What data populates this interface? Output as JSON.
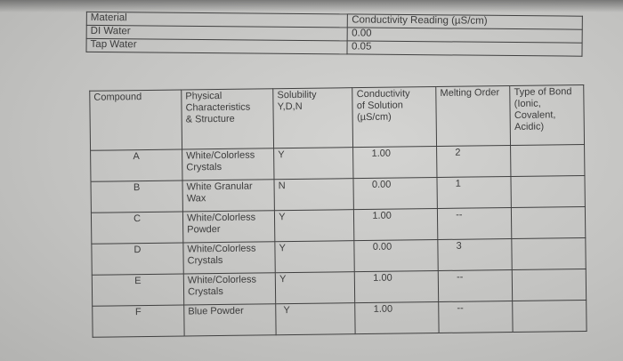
{
  "table1": {
    "header": [
      "Material",
      "Conductivity Reading (µS/cm)"
    ],
    "rows": [
      {
        "material": "DI Water",
        "reading": "0.00"
      },
      {
        "material": "Tap Water",
        "reading": "0.05"
      }
    ]
  },
  "table2": {
    "headers": {
      "compound": "Compound",
      "physical": [
        "Physical",
        "Characteristics",
        "& Structure"
      ],
      "solubility": [
        "Solubility",
        "Y,D,N"
      ],
      "conductivity": [
        "Conductivity",
        "of Solution",
        "(µS/cm)"
      ],
      "melting": "Melting Order",
      "bond": [
        "Type of Bond",
        "(Ionic,",
        "Covalent,",
        "Acidic)"
      ]
    },
    "rows": [
      {
        "compound": "A",
        "phys1": "White/Colorless",
        "phys2": "Crystals",
        "sol": "Y",
        "cond": "1.00",
        "melt": "2",
        "bond": ""
      },
      {
        "compound": "B",
        "phys1": "White Granular",
        "phys2": "Wax",
        "sol": "N",
        "cond": "0.00",
        "melt": "1",
        "bond": ""
      },
      {
        "compound": "C",
        "phys1": "White/Colorless",
        "phys2": "Powder",
        "sol": "Y",
        "cond": "1.00",
        "melt": "--",
        "bond": ""
      },
      {
        "compound": "D",
        "phys1": "White/Colorless",
        "phys2": "Crystals",
        "sol": "Y",
        "cond": "0.00",
        "melt": "3",
        "bond": ""
      },
      {
        "compound": "E",
        "phys1": "White/Colorless",
        "phys2": "Crystals",
        "sol": "Y",
        "cond": "1.00",
        "melt": "--",
        "bond": ""
      },
      {
        "compound": "F",
        "phys1": "Blue Powder",
        "phys2": "",
        "sol": "Y",
        "cond": "1.00",
        "melt": "--",
        "bond": ""
      }
    ]
  }
}
